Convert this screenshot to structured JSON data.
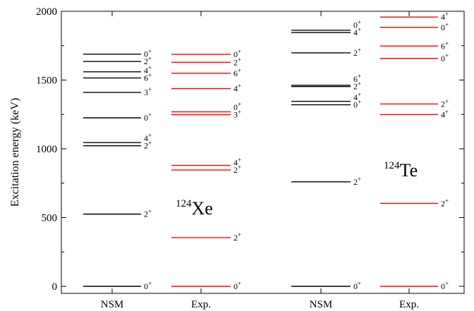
{
  "chart_data": {
    "type": "level_scheme",
    "ylabel": "Excitation energy (keV)",
    "ylim": [
      0,
      2000
    ],
    "yticks": [
      0,
      500,
      1000,
      1500,
      2000
    ],
    "columns": [
      {
        "label": "NSM",
        "nucleus": "Xe",
        "color": "#000000",
        "levels": [
          {
            "energy": 0,
            "spin": "0",
            "parity": "+"
          },
          {
            "energy": 525,
            "spin": "2",
            "parity": "+"
          },
          {
            "energy": 1022,
            "spin": "2",
            "parity": "+"
          },
          {
            "energy": 1045,
            "spin": "4",
            "parity": "+"
          },
          {
            "energy": 1225,
            "spin": "0",
            "parity": "+"
          },
          {
            "energy": 1410,
            "spin": "3",
            "parity": "+"
          },
          {
            "energy": 1515,
            "spin": "6",
            "parity": "+"
          },
          {
            "energy": 1560,
            "spin": "4",
            "parity": "+"
          },
          {
            "energy": 1635,
            "spin": "2",
            "parity": "+"
          },
          {
            "energy": 1688,
            "spin": "0",
            "parity": "+"
          }
        ]
      },
      {
        "label": "Exp.",
        "nucleus": "Xe",
        "color": "#ff0000",
        "levels": [
          {
            "energy": 0,
            "spin": "0",
            "parity": "+"
          },
          {
            "energy": 354,
            "spin": "2",
            "parity": "+"
          },
          {
            "energy": 846,
            "spin": "2",
            "parity": "+"
          },
          {
            "energy": 879,
            "spin": "4",
            "parity": "+"
          },
          {
            "energy": 1248,
            "spin": "3",
            "parity": "+"
          },
          {
            "energy": 1269,
            "spin": "0",
            "parity": "+"
          },
          {
            "energy": 1438,
            "spin": "4",
            "parity": "+"
          },
          {
            "energy": 1549,
            "spin": "6",
            "parity": "+"
          },
          {
            "energy": 1629,
            "spin": "2",
            "parity": "+"
          },
          {
            "energy": 1687,
            "spin": "0",
            "parity": "+"
          }
        ]
      },
      {
        "label": "NSM",
        "nucleus": "Te",
        "color": "#000000",
        "levels": [
          {
            "energy": 0,
            "spin": "0",
            "parity": "+"
          },
          {
            "energy": 760,
            "spin": "2",
            "parity": "+"
          },
          {
            "energy": 1320,
            "spin": "0",
            "parity": "+"
          },
          {
            "energy": 1345,
            "spin": "4",
            "parity": "+"
          },
          {
            "energy": 1453,
            "spin": "2",
            "parity": "+"
          },
          {
            "energy": 1462,
            "spin": "6",
            "parity": "+"
          },
          {
            "energy": 1698,
            "spin": "2",
            "parity": "+"
          },
          {
            "energy": 1845,
            "spin": "4",
            "parity": "+"
          },
          {
            "energy": 1862,
            "spin": "0",
            "parity": "+"
          }
        ]
      },
      {
        "label": "Exp.",
        "nucleus": "Te",
        "color": "#ff0000",
        "levels": [
          {
            "energy": 0,
            "spin": "0",
            "parity": "+"
          },
          {
            "energy": 603,
            "spin": "2",
            "parity": "+"
          },
          {
            "energy": 1249,
            "spin": "4",
            "parity": "+"
          },
          {
            "energy": 1326,
            "spin": "2",
            "parity": "+"
          },
          {
            "energy": 1657,
            "spin": "0",
            "parity": "+"
          },
          {
            "energy": 1747,
            "spin": "6",
            "parity": "+"
          },
          {
            "energy": 1883,
            "spin": "0",
            "parity": "+"
          },
          {
            "energy": 1958,
            "spin": "4",
            "parity": "+"
          }
        ]
      }
    ],
    "annotations": [
      {
        "mass": "124",
        "symbol": "Xe"
      },
      {
        "mass": "124",
        "symbol": "Te"
      }
    ]
  }
}
